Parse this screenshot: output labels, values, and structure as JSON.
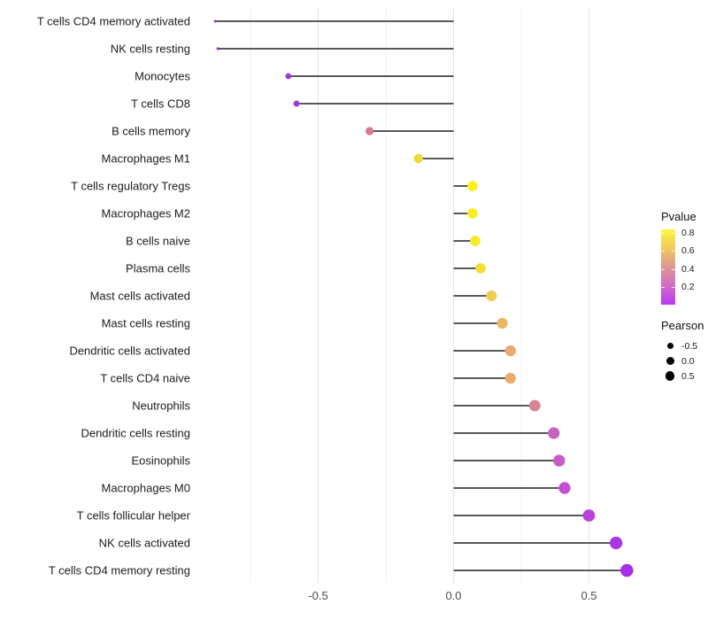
{
  "chart_data": {
    "type": "scatter",
    "subtype": "lollipop",
    "orientation": "horizontal",
    "title": "",
    "xlabel": "",
    "ylabel": "",
    "x_axis": {
      "tick_values": [
        -0.5,
        0.0,
        0.5
      ],
      "tick_labels": [
        "-0.5",
        "0.0",
        "0.5"
      ],
      "range": [
        -0.95,
        0.7
      ],
      "major_gridlines": [
        -0.5,
        0.0,
        0.5
      ],
      "minor_gridlines": [
        -0.75,
        -0.25,
        0.25
      ],
      "grid": true
    },
    "rows": [
      {
        "label": "T cells CD4 memory activated",
        "pearson": -0.88,
        "pvalue": 0.01,
        "color": "#962fdd"
      },
      {
        "label": "NK cells resting",
        "pearson": -0.87,
        "pvalue": 0.01,
        "color": "#962fdd"
      },
      {
        "label": "Monocytes",
        "pearson": -0.61,
        "pvalue": 0.05,
        "color": "#a135de"
      },
      {
        "label": "T cells CD8",
        "pearson": -0.58,
        "pvalue": 0.07,
        "color": "#a63ade"
      },
      {
        "label": "B cells memory",
        "pearson": -0.31,
        "pvalue": 0.38,
        "color": "#d7798f"
      },
      {
        "label": "Macrophages M1",
        "pearson": -0.13,
        "pvalue": 0.72,
        "color": "#f0d83f"
      },
      {
        "label": "T cells regulatory  Tregs",
        "pearson": 0.07,
        "pvalue": 0.84,
        "color": "#faf01b"
      },
      {
        "label": "Macrophages M2",
        "pearson": 0.07,
        "pvalue": 0.83,
        "color": "#f9ee20"
      },
      {
        "label": "B cells naive",
        "pearson": 0.08,
        "pvalue": 0.81,
        "color": "#f7ea28"
      },
      {
        "label": "Plasma cells",
        "pearson": 0.1,
        "pvalue": 0.76,
        "color": "#f4df38"
      },
      {
        "label": "Mast cells activated",
        "pearson": 0.14,
        "pvalue": 0.67,
        "color": "#f1cc52"
      },
      {
        "label": "Mast cells resting",
        "pearson": 0.18,
        "pvalue": 0.58,
        "color": "#eeb763"
      },
      {
        "label": "Dendritic cells activated",
        "pearson": 0.21,
        "pvalue": 0.52,
        "color": "#ebaa6d"
      },
      {
        "label": "T cells CD4 naive",
        "pearson": 0.21,
        "pvalue": 0.52,
        "color": "#ebaa6d"
      },
      {
        "label": "Neutrophils",
        "pearson": 0.3,
        "pvalue": 0.36,
        "color": "#d98394"
      },
      {
        "label": "Dendritic cells resting",
        "pearson": 0.37,
        "pvalue": 0.25,
        "color": "#ca62c6"
      },
      {
        "label": "Eosinophils",
        "pearson": 0.39,
        "pvalue": 0.23,
        "color": "#c75ac9"
      },
      {
        "label": "Macrophages M0",
        "pearson": 0.41,
        "pvalue": 0.2,
        "color": "#c44fd0"
      },
      {
        "label": "T cells follicular helper",
        "pearson": 0.5,
        "pvalue": 0.14,
        "color": "#bb43da"
      },
      {
        "label": "NK cells activated",
        "pearson": 0.6,
        "pvalue": 0.07,
        "color": "#ac35e6"
      },
      {
        "label": "T cells CD4 memory resting",
        "pearson": 0.64,
        "pvalue": 0.05,
        "color": "#a62fe9"
      }
    ],
    "legend_pvalue": {
      "title": "Pvalue",
      "position": "right",
      "bar_range": [
        0.0,
        0.84
      ],
      "ticks": [
        {
          "label": "0.8",
          "value": 0.8
        },
        {
          "label": "0.6",
          "value": 0.6
        },
        {
          "label": "0.4",
          "value": 0.4
        },
        {
          "label": "0.2",
          "value": 0.2
        }
      ],
      "gradient_stops": [
        {
          "offset": 0.0,
          "color": "#fdf53e"
        },
        {
          "offset": 0.25,
          "color": "#f3c95e"
        },
        {
          "offset": 0.5,
          "color": "#dd9795"
        },
        {
          "offset": 0.75,
          "color": "#cf6cc7"
        },
        {
          "offset": 1.0,
          "color": "#b937f3"
        }
      ]
    },
    "legend_pearson": {
      "title": "Pearson",
      "position": "right",
      "items": [
        {
          "label": "-0.5",
          "value": -0.5
        },
        {
          "label": "0.0",
          "value": 0.0
        },
        {
          "label": "0.5",
          "value": 0.5
        }
      ]
    }
  },
  "colors": {
    "background": "#ffffff",
    "stem": "#585858",
    "gridline_major": "#e4e4e4",
    "gridline_minor": "#f1f1f1",
    "axis_tick_text": "#4d4d4d",
    "row_label_text": "#1c1c1c",
    "legend_dot": "#000000"
  }
}
